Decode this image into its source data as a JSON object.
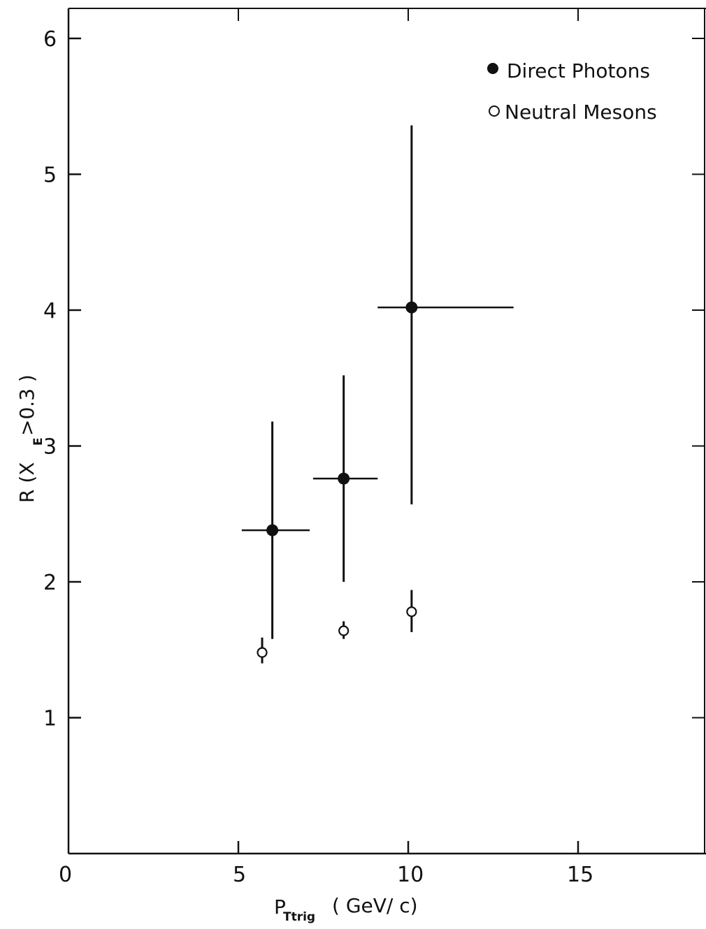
{
  "chart_data": {
    "type": "scatter",
    "title": "",
    "xlabel": {
      "main": "P",
      "sub": "Ttrig",
      "unit": "( GeV/ c)"
    },
    "ylabel": {
      "main": "R (X",
      "sub": "E",
      "rest": " >0.3 )"
    },
    "xlim": [
      0,
      19
    ],
    "ylim": [
      0,
      6.25
    ],
    "xticks": [
      0,
      5,
      10,
      15
    ],
    "yticks": [
      1,
      2,
      3,
      4,
      5,
      6
    ],
    "legend_position": "top-right",
    "series": [
      {
        "name": "Direct Photons",
        "marker": "filled-circle",
        "points": [
          {
            "x": 6.0,
            "y": 2.38,
            "xerr": [
              5.1,
              7.1
            ],
            "yerr": [
              1.58,
              3.18
            ]
          },
          {
            "x": 8.1,
            "y": 2.76,
            "xerr": [
              7.2,
              9.1
            ],
            "yerr": [
              2.0,
              3.52
            ]
          },
          {
            "x": 10.1,
            "y": 4.02,
            "xerr": [
              9.1,
              13.1
            ],
            "yerr": [
              2.57,
              5.36
            ]
          }
        ]
      },
      {
        "name": "Neutral Mesons",
        "marker": "open-circle",
        "points": [
          {
            "x": 5.7,
            "y": 1.48,
            "yerr": [
              1.4,
              1.59
            ]
          },
          {
            "x": 8.1,
            "y": 1.64,
            "yerr": [
              1.58,
              1.71
            ]
          },
          {
            "x": 10.1,
            "y": 1.78,
            "yerr": [
              1.63,
              1.94
            ]
          }
        ]
      }
    ]
  }
}
